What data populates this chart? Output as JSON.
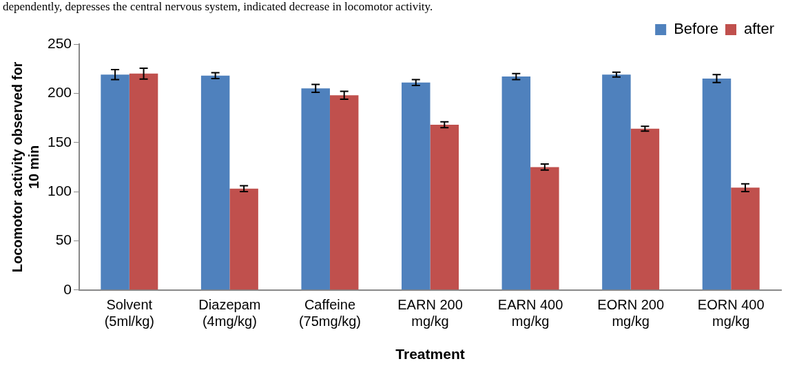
{
  "chart_data": {
    "type": "bar",
    "xlabel": "Treatment",
    "ylabel": "Locomotor activity observed for 10 min",
    "annotations": [
      "dependently, depresses the central nervous system, indicated decrease in locomotor activity."
    ],
    "categories": [
      "Solvent (5ml/kg)",
      "Diazepam (4mg/kg)",
      "Caffeine (75mg/kg)",
      "EARN 200 mg/kg",
      "EARN 400 mg/kg",
      "EORN 200 mg/kg",
      "EORN 400 mg/kg"
    ],
    "series": [
      {
        "name": "Before",
        "color": "#4f81bd",
        "values": [
          219,
          218,
          205,
          211,
          217,
          219,
          215
        ],
        "errors": [
          5,
          3,
          4,
          3,
          3,
          2.5,
          4
        ]
      },
      {
        "name": "after",
        "color": "#c0504d",
        "values": [
          220,
          103,
          198,
          168,
          125,
          164,
          104
        ],
        "errors": [
          5.5,
          3,
          4,
          3,
          3,
          2.5,
          4
        ]
      }
    ],
    "ylim": [
      0,
      250
    ],
    "yticks": [
      0,
      50,
      100,
      150,
      200,
      250
    ],
    "grid": false,
    "legend": "top right"
  }
}
